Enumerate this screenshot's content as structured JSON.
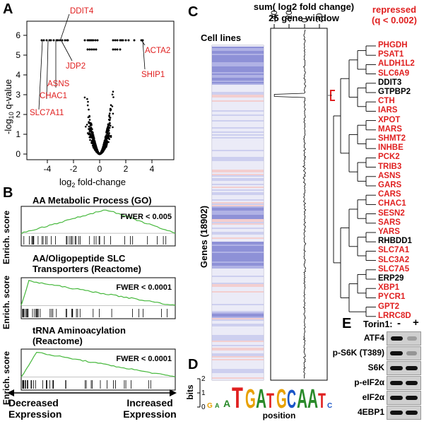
{
  "panels": {
    "a": "A",
    "b": "B",
    "c": "C",
    "d": "D",
    "e": "E"
  },
  "panelA": {
    "ylabel_main": "-log",
    "ylabel_sub": "10",
    "ylabel_rest": " q-value",
    "xlabel_main": "log",
    "xlabel_sub": "2",
    "xlabel_rest": " fold-change",
    "x_ticks": [
      "-4",
      "-2",
      "0",
      "2",
      "4"
    ],
    "y_ticks": [
      "0",
      "1",
      "2",
      "3",
      "4",
      "5",
      "6"
    ],
    "genes": [
      "DDIT4",
      "JDP2",
      "ASNS",
      "CHAC1",
      "SLC7A11",
      "ACTA2",
      "SHIP1"
    ]
  },
  "panelB": {
    "plots": [
      {
        "title": "AA Metabolic Process (GO)",
        "fwer": "FWER < 0.005"
      },
      {
        "title": "AA/Oligopeptide SLC Transporters (Reactome)",
        "fwer": "FWER < 0.0001"
      },
      {
        "title": "tRNA Aminoacylation (Reactome)",
        "fwer": "FWER < 0.0001"
      }
    ],
    "ylabel": "Enrich. score",
    "left_label": "Decreased Expression",
    "right_label": "Increased Expression"
  },
  "panelC": {
    "title_line1": "sum( log2 fold change)",
    "title_line2": "25 gene window",
    "cell_lines": "Cell lines",
    "genes_axis": "Genes (18902)",
    "x_ticks": [
      "-40",
      "-20",
      "0",
      "20"
    ],
    "repressed_line1": "repressed",
    "repressed_line2": "(q < 0.002)",
    "gene_list": [
      {
        "name": "PHGDH",
        "red": true
      },
      {
        "name": "PSAT1",
        "red": true
      },
      {
        "name": "ALDH1L2",
        "red": true
      },
      {
        "name": "SLC6A9",
        "red": true
      },
      {
        "name": "DDIT3",
        "red": false
      },
      {
        "name": "GTPBP2",
        "red": false
      },
      {
        "name": "CTH",
        "red": true
      },
      {
        "name": "IARS",
        "red": true
      },
      {
        "name": "XPOT",
        "red": true
      },
      {
        "name": "MARS",
        "red": true
      },
      {
        "name": "SHMT2",
        "red": true
      },
      {
        "name": "INHBE",
        "red": true
      },
      {
        "name": "PCK2",
        "red": true
      },
      {
        "name": "TRIB3",
        "red": true
      },
      {
        "name": "ASNS",
        "red": true
      },
      {
        "name": "GARS",
        "red": true
      },
      {
        "name": "CARS",
        "red": true
      },
      {
        "name": "CHAC1",
        "red": true
      },
      {
        "name": "SESN2",
        "red": true
      },
      {
        "name": "SARS",
        "red": true
      },
      {
        "name": "YARS",
        "red": true
      },
      {
        "name": "RHBDD1",
        "red": false
      },
      {
        "name": "SLC7A1",
        "red": true
      },
      {
        "name": "SLC3A2",
        "red": true
      },
      {
        "name": "SLC7A5",
        "red": true
      },
      {
        "name": "ERP29",
        "red": false
      },
      {
        "name": "XBP1",
        "red": true
      },
      {
        "name": "PYCR1",
        "red": true
      },
      {
        "name": "GPT2",
        "red": true
      },
      {
        "name": "LRRC8D",
        "red": true
      }
    ]
  },
  "panelD": {
    "ylabel": "bits",
    "xlabel": "position",
    "y_ticks": [
      "0",
      "1",
      "2"
    ]
  },
  "panelE": {
    "treatment": "Torin1:",
    "minus": "-",
    "plus": "+",
    "rows": [
      "ATF4",
      "p-S6K (T389)",
      "S6K",
      "p-eIF2α",
      "eIF2α",
      "4EBP1"
    ]
  }
}
